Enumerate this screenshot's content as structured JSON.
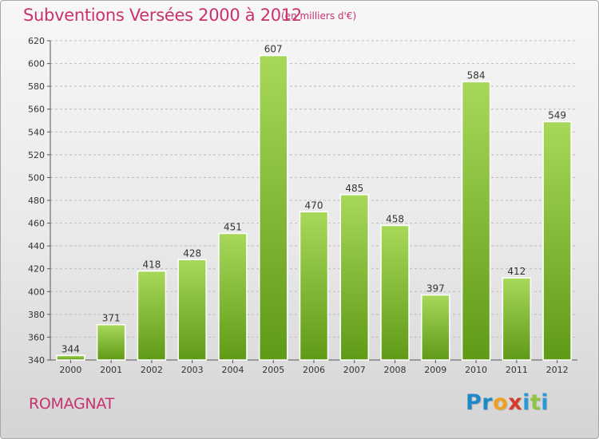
{
  "title": "Subventions Versées 2000 à 2012",
  "subtitle": "(en milliers d'€)",
  "city": "ROMAGNAT",
  "logo": {
    "letters": [
      "P",
      "r",
      "o",
      "x",
      "i",
      "t",
      "i"
    ]
  },
  "colors": {
    "title": "#c8326e",
    "bar_light": "#a8d85a",
    "bar_dark": "#5f9a16",
    "grid": "#bbbbbb",
    "logo": [
      "#1e88c8",
      "#1e88c8",
      "#f0a020",
      "#d63a2a",
      "#2a9ad6",
      "#8cc63f",
      "#2a9ad6"
    ]
  },
  "chart_data": {
    "type": "bar",
    "categories": [
      "2000",
      "2001",
      "2002",
      "2003",
      "2004",
      "2005",
      "2006",
      "2007",
      "2008",
      "2009",
      "2010",
      "2011",
      "2012"
    ],
    "values": [
      344,
      371,
      418,
      428,
      451,
      607,
      470,
      485,
      458,
      397,
      584,
      412,
      549
    ],
    "ylim": [
      340,
      620
    ],
    "yticks": [
      340,
      360,
      380,
      400,
      420,
      440,
      460,
      480,
      500,
      520,
      540,
      560,
      580,
      600,
      620
    ],
    "grid": true,
    "legend": "none"
  }
}
